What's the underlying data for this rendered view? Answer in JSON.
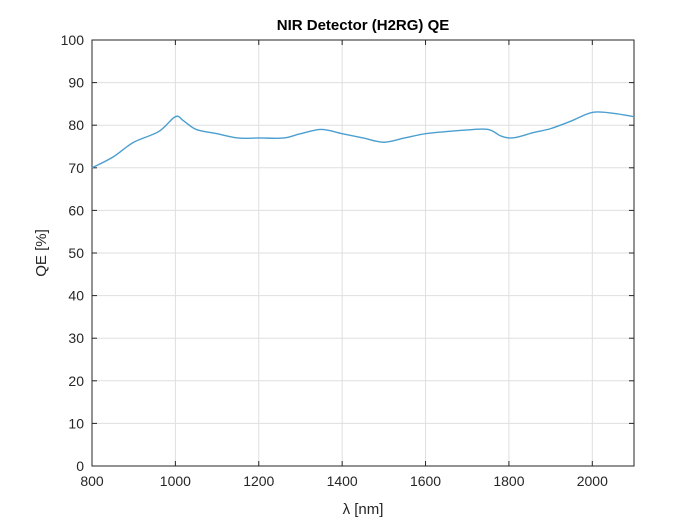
{
  "chart_data": {
    "type": "line",
    "title": "NIR Detector (H2RG) QE",
    "xlabel": "λ [nm]",
    "ylabel": "QE [%]",
    "xlim": [
      800,
      2100
    ],
    "ylim": [
      0,
      100
    ],
    "xticks": [
      800,
      1000,
      1200,
      1400,
      1600,
      1800,
      2000
    ],
    "yticks": [
      0,
      10,
      20,
      30,
      40,
      50,
      60,
      70,
      80,
      90,
      100
    ],
    "grid": true,
    "line_color": "#4a9fcf",
    "series": [
      {
        "x": [
          800,
          850,
          900,
          960,
          1000,
          1020,
          1050,
          1100,
          1150,
          1200,
          1260,
          1300,
          1350,
          1400,
          1450,
          1500,
          1550,
          1600,
          1650,
          1700,
          1750,
          1780,
          1800,
          1820,
          1860,
          1900,
          1950,
          2000,
          2050,
          2100
        ],
        "values": [
          70,
          72.5,
          76,
          78.5,
          82,
          81,
          79,
          78,
          77,
          77,
          77,
          78,
          79,
          78,
          77,
          76,
          77,
          78,
          78.5,
          78.9,
          79,
          77.5,
          77,
          77.2,
          78.3,
          79.2,
          81,
          83,
          82.8,
          82
        ]
      }
    ]
  }
}
